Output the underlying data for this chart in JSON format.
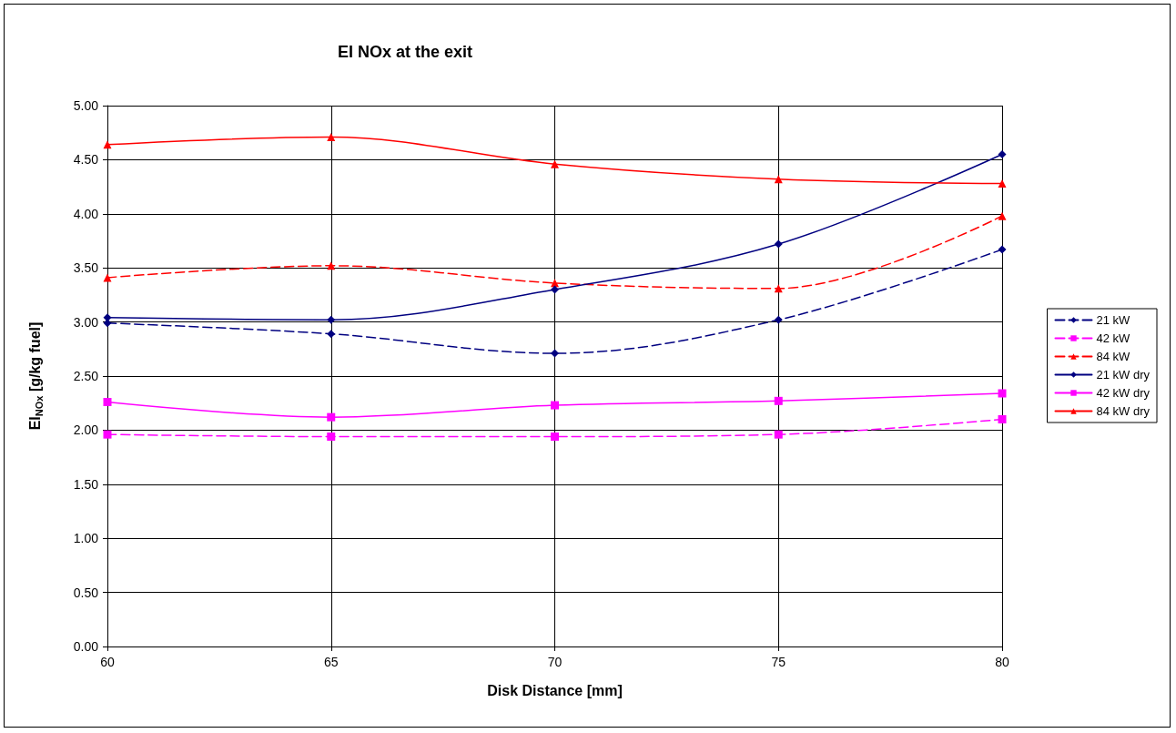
{
  "chart_data": {
    "type": "line",
    "title": "EI NOx at the exit",
    "xlabel": "Disk Distance [mm]",
    "ylabel": "EI$_{NOx}$ [g/kg fuel]",
    "x": [
      60,
      65,
      70,
      75,
      80
    ],
    "xlim": [
      60,
      80
    ],
    "xticks": [
      60,
      65,
      70,
      75,
      80
    ],
    "ylim": [
      0,
      5
    ],
    "yticks": [
      {
        "value": 0,
        "label": "0.00"
      },
      {
        "value": 0.5,
        "label": "0.50"
      },
      {
        "value": 1,
        "label": "1.00"
      },
      {
        "value": 1.5,
        "label": "1.50"
      },
      {
        "value": 2,
        "label": "2.00"
      },
      {
        "value": 2.5,
        "label": "2.50"
      },
      {
        "value": 3,
        "label": "3.00"
      },
      {
        "value": 3.5,
        "label": "3.50"
      },
      {
        "value": 4,
        "label": "4.00"
      },
      {
        "value": 4.5,
        "label": "4.50"
      },
      {
        "value": 5,
        "label": "5.00"
      }
    ],
    "grid": true,
    "legend": "right",
    "series": [
      {
        "name": "21 kW",
        "color": "#000080",
        "marker": "diamond",
        "line_style": "dashed",
        "values": [
          2.99,
          2.89,
          2.71,
          3.02,
          3.67
        ]
      },
      {
        "name": "42 kW",
        "color": "#ff00ff",
        "marker": "square",
        "line_style": "dashed",
        "values": [
          1.96,
          1.94,
          1.94,
          1.96,
          2.1
        ]
      },
      {
        "name": "84 kW",
        "color": "#ff0000",
        "marker": "triangle",
        "line_style": "dashed",
        "values": [
          3.41,
          3.52,
          3.36,
          3.31,
          3.98
        ]
      },
      {
        "name": "21 kW dry",
        "color": "#000080",
        "marker": "diamond",
        "line_style": "solid",
        "values": [
          3.04,
          3.02,
          3.3,
          3.72,
          4.55
        ]
      },
      {
        "name": "42 kW dry",
        "color": "#ff00ff",
        "marker": "square",
        "line_style": "solid",
        "values": [
          2.26,
          2.12,
          2.23,
          2.27,
          2.34
        ]
      },
      {
        "name": "84 kW dry",
        "color": "#ff0000",
        "marker": "triangle",
        "line_style": "solid",
        "values": [
          4.64,
          4.71,
          4.46,
          4.32,
          4.28
        ]
      }
    ]
  }
}
